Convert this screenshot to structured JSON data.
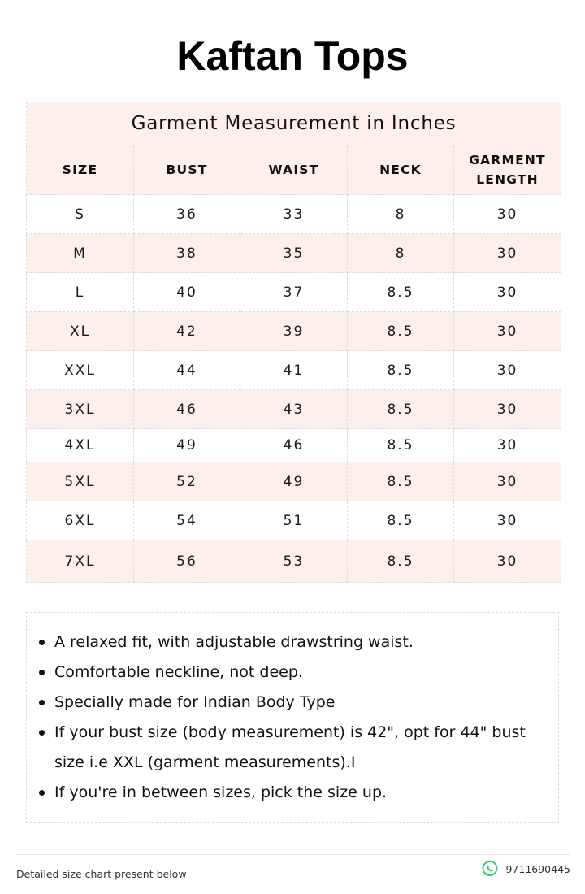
{
  "page": {
    "title": "Kaftan Tops"
  },
  "table": {
    "caption": "Garment Measurement in Inches",
    "headers": [
      "SIZE",
      "BUST",
      "WAIST",
      "NECK",
      "GARMENT LENGTH"
    ],
    "header_lines": {
      "garment_length": [
        "GARMENT",
        "LENGTH"
      ]
    },
    "rows": [
      {
        "size": "S",
        "bust": "36",
        "waist": "33",
        "neck": "8",
        "length": "30"
      },
      {
        "size": "M",
        "bust": "38",
        "waist": "35",
        "neck": "8",
        "length": "30"
      },
      {
        "size": "L",
        "bust": "40",
        "waist": "37",
        "neck": "8.5",
        "length": "30"
      },
      {
        "size": "XL",
        "bust": "42",
        "waist": "39",
        "neck": "8.5",
        "length": "30"
      },
      {
        "size": "XXL",
        "bust": "44",
        "waist": "41",
        "neck": "8.5",
        "length": "30"
      },
      {
        "size": "3XL",
        "bust": "46",
        "waist": "43",
        "neck": "8.5",
        "length": "30"
      },
      {
        "size": "4XL",
        "bust": "49",
        "waist": "46",
        "neck": "8.5",
        "length": "30"
      },
      {
        "size": "5XL",
        "bust": "52",
        "waist": "49",
        "neck": "8.5",
        "length": "30"
      },
      {
        "size": "6XL",
        "bust": "54",
        "waist": "51",
        "neck": "8.5",
        "length": "30"
      },
      {
        "size": "7XL",
        "bust": "56",
        "waist": "53",
        "neck": "8.5",
        "length": "30"
      }
    ]
  },
  "notes": [
    "A relaxed fit, with adjustable drawstring waist.",
    "Comfortable neckline,  not deep.",
    "Specially made for Indian Body Type",
    "If your bust size (body measurement) is 42\", opt for 44\" bust size i.e XXL (garment measurements).I",
    "If you're in between sizes, pick the size up."
  ],
  "footer": {
    "left_text": "Detailed size chart present below",
    "phone": "9711690445",
    "phone_icon": "whatsapp-icon"
  },
  "colors": {
    "row_tint": "#fdf0ec",
    "whatsapp_green": "#25d366"
  }
}
